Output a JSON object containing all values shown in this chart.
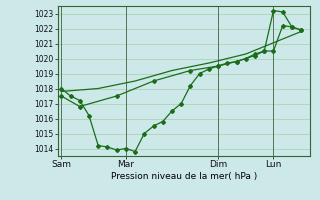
{
  "background_color": "#cce8e8",
  "grid_color": "#aaccaa",
  "line_color": "#1a6e1a",
  "xlabel": "Pression niveau de la mer( hPa )",
  "ylim": [
    1013.5,
    1023.5
  ],
  "yticks": [
    1014,
    1015,
    1016,
    1017,
    1018,
    1019,
    1020,
    1021,
    1022,
    1023
  ],
  "xtick_labels": [
    "Sam",
    "Mar",
    "Dim",
    "Lun"
  ],
  "xtick_positions": [
    0,
    3.5,
    8.5,
    11.5
  ],
  "xlim": [
    -0.2,
    13.5
  ],
  "vlines": [
    0,
    3.5,
    8.5,
    11.5
  ],
  "line1": {
    "x": [
      0,
      0.5,
      1.0,
      1.5,
      2.0,
      2.5,
      3.0,
      3.5,
      4.0,
      4.5,
      5.0,
      5.5,
      6.0,
      6.5,
      7.0,
      7.5,
      8.0,
      8.5,
      9.0,
      9.5,
      10.0,
      10.5,
      11.0,
      11.5,
      12.0,
      12.5,
      13.0
    ],
    "y": [
      1018.0,
      1017.5,
      1017.2,
      1016.2,
      1014.2,
      1014.1,
      1013.9,
      1014.0,
      1013.8,
      1015.0,
      1015.5,
      1015.8,
      1016.5,
      1017.0,
      1018.2,
      1019.0,
      1019.3,
      1019.5,
      1019.7,
      1019.8,
      1020.0,
      1020.3,
      1020.5,
      1020.5,
      1022.2,
      1022.1,
      1021.9
    ]
  },
  "line2": {
    "x": [
      0,
      1.0,
      3.0,
      5.0,
      7.0,
      8.5,
      9.5,
      10.5,
      11.0,
      11.5,
      12.0,
      12.5,
      13.0
    ],
    "y": [
      1017.5,
      1016.8,
      1017.5,
      1018.5,
      1019.2,
      1019.5,
      1019.8,
      1020.2,
      1020.5,
      1023.2,
      1023.1,
      1022.1,
      1021.9
    ]
  },
  "line3": {
    "x": [
      0,
      2.0,
      4.0,
      6.0,
      8.0,
      10.0,
      11.0,
      12.0,
      13.0
    ],
    "y": [
      1017.8,
      1018.0,
      1018.5,
      1019.2,
      1019.7,
      1020.3,
      1020.8,
      1021.3,
      1021.8
    ]
  }
}
